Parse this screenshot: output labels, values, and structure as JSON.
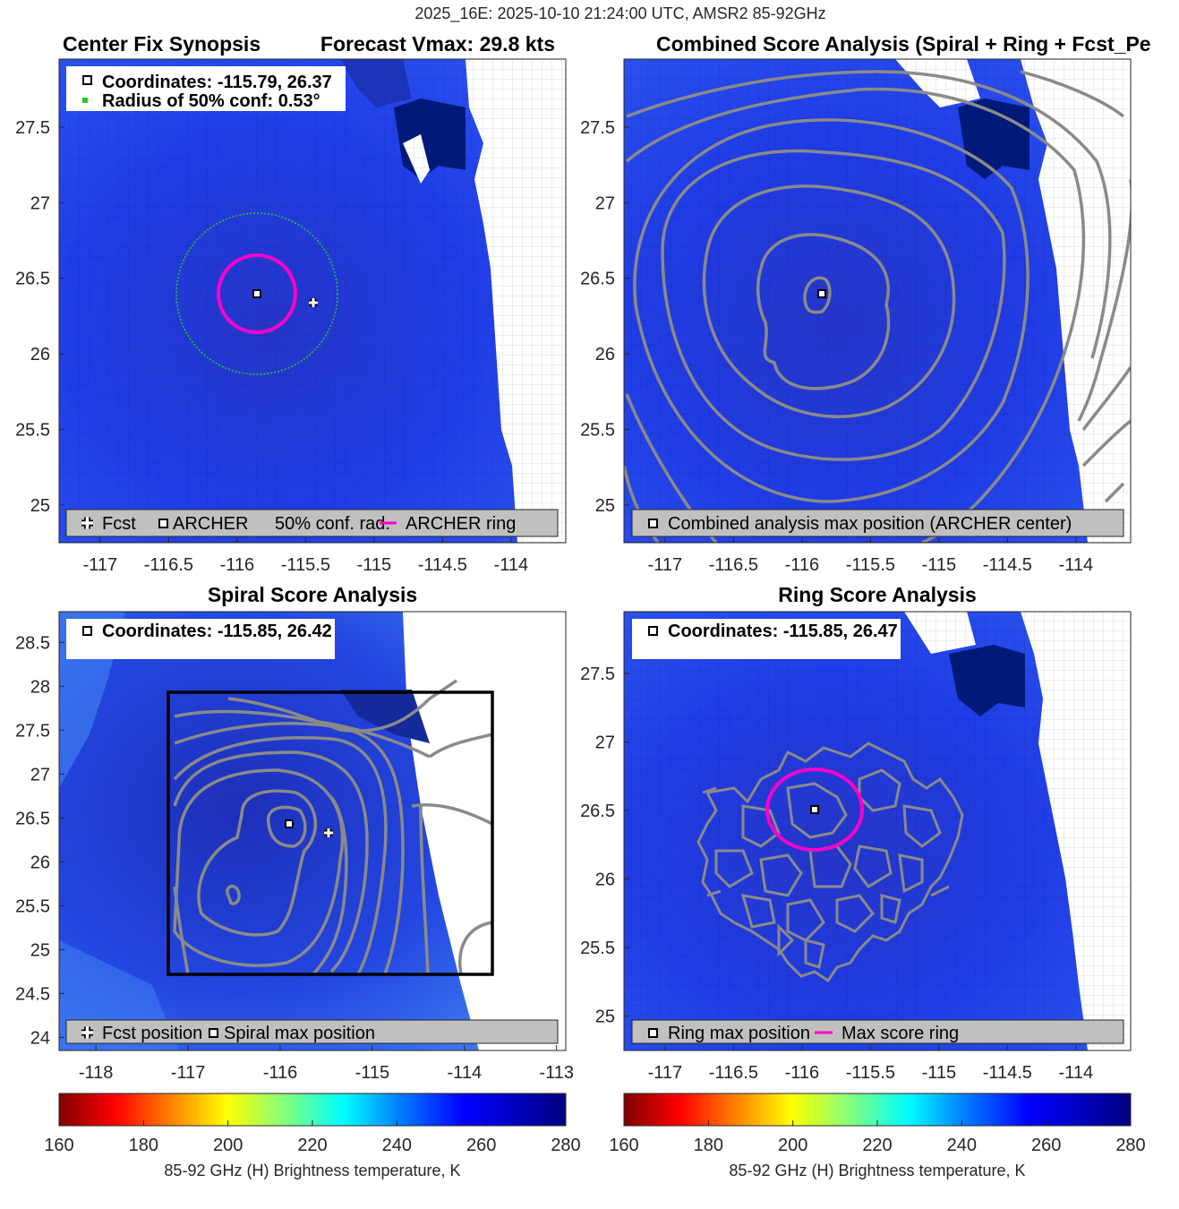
{
  "figure": {
    "suptitle": "2025_16E: 2025-10-10 21:24:00 UTC, AMSR2 85-92GHz"
  },
  "colors": {
    "background_field": "#1f3fe0",
    "cold_core": "#001a7a",
    "no_data": "#ffffff",
    "contour": "#8a8a8a",
    "ring": "#ff00cc",
    "conf_circle": "#22cc22",
    "box": "#000000",
    "legend_box": "#c0c0c0"
  },
  "panels": {
    "synopsis": {
      "title_left": "Center Fix Synopsis",
      "title_right": "Forecast Vmax: 29.8 kts",
      "coords_line": "Coordinates: -115.79, 26.37",
      "radius_line": "Radius of 50% conf: 0.53°",
      "legend": [
        "Fcst",
        "ARCHER",
        "50% conf. rad.",
        "ARCHER ring"
      ]
    },
    "combined": {
      "title": "Combined Score Analysis (Spiral + Ring + Fcst_Pe",
      "legend": [
        "Combined analysis max position (ARCHER center)"
      ]
    },
    "spiral": {
      "title": "Spiral Score Analysis",
      "coords_line": "Coordinates: -115.85, 26.42",
      "legend": [
        "Fcst position",
        "Spiral max position"
      ]
    },
    "ring": {
      "title": "Ring Score Analysis",
      "coords_line": "Coordinates: -115.85, 26.47",
      "legend": [
        "Ring max position",
        "Max score ring"
      ]
    }
  },
  "colorbars": [
    {
      "label": "85-92 GHz (H) Brightness temperature, K",
      "ticks": [
        "160",
        "180",
        "200",
        "220",
        "240",
        "260",
        "280"
      ]
    },
    {
      "label": "85-92 GHz (H) Brightness temperature, K",
      "ticks": [
        "160",
        "180",
        "200",
        "220",
        "240",
        "260",
        "280"
      ]
    }
  ],
  "chart_data": [
    {
      "type": "heatmap",
      "title": "Center Fix Synopsis",
      "xlim": [
        -117.3,
        -113.6
      ],
      "ylim": [
        24.75,
        27.95
      ],
      "xticks": [
        -117,
        -116.5,
        -116,
        -115.5,
        -115,
        -114.5,
        -114
      ],
      "yticks": [
        25,
        25.5,
        26,
        26.5,
        27,
        27.5
      ],
      "points": [
        {
          "name": "ARCHER",
          "lon": -115.79,
          "lat": 26.37
        },
        {
          "name": "Fcst",
          "lon": -115.42,
          "lat": 26.31
        }
      ],
      "conf_radius_deg": 0.53,
      "archer_ring_radius_deg": 0.26,
      "colorscale_range": [
        160,
        280
      ]
    },
    {
      "type": "heatmap",
      "title": "Combined Score Analysis (Spiral + Ring + Fcst_Pe",
      "xlim": [
        -117.3,
        -113.6
      ],
      "ylim": [
        24.75,
        27.95
      ],
      "xticks": [
        -117,
        -116.5,
        -116,
        -115.5,
        -115,
        -114.5,
        -114
      ],
      "yticks": [
        25,
        25.5,
        26,
        26.5,
        27,
        27.5
      ],
      "points": [
        {
          "name": "Combined analysis max position (ARCHER center)",
          "lon": -115.79,
          "lat": 26.37
        }
      ]
    },
    {
      "type": "heatmap",
      "title": "Spiral Score Analysis",
      "xlim": [
        -118.4,
        -112.9
      ],
      "ylim": [
        23.85,
        28.85
      ],
      "xticks": [
        -118,
        -117,
        -116,
        -115,
        -114,
        -113
      ],
      "yticks": [
        24,
        24.5,
        25,
        25.5,
        26,
        26.5,
        27,
        27.5,
        28,
        28.5
      ],
      "points": [
        {
          "name": "Spiral max position",
          "lon": -115.85,
          "lat": 26.42
        },
        {
          "name": "Fcst position",
          "lon": -115.42,
          "lat": 26.31
        }
      ],
      "box_lon": [
        -117.2,
        -113.6
      ],
      "box_lat": [
        24.75,
        27.95
      ]
    },
    {
      "type": "heatmap",
      "title": "Ring Score Analysis",
      "xlim": [
        -117.3,
        -113.6
      ],
      "ylim": [
        24.75,
        27.95
      ],
      "xticks": [
        -117,
        -116.5,
        -116,
        -115.5,
        -115,
        -114.5,
        -114
      ],
      "yticks": [
        25,
        25.5,
        26,
        26.5,
        27,
        27.5
      ],
      "points": [
        {
          "name": "Ring max position",
          "lon": -115.85,
          "lat": 26.47
        }
      ],
      "max_score_ring_radius_deg": 0.3
    }
  ]
}
